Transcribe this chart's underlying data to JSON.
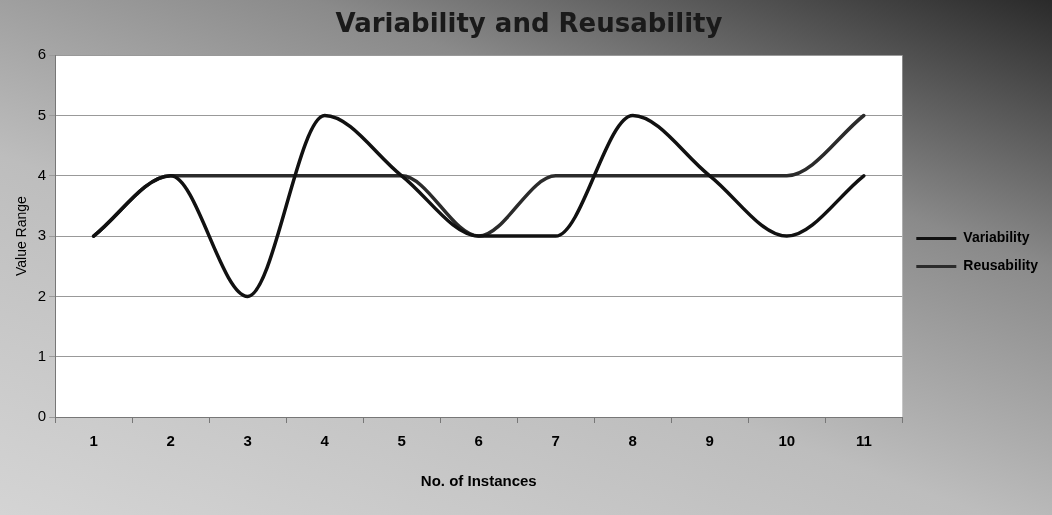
{
  "chart_data": {
    "type": "line",
    "title": "Variability and Reusability",
    "xlabel": "No. of Instances",
    "ylabel": "Value Range",
    "categories": [
      "1",
      "2",
      "3",
      "4",
      "5",
      "6",
      "7",
      "8",
      "9",
      "10",
      "11"
    ],
    "series": [
      {
        "name": "Variability",
        "color": "#111111",
        "values": [
          3,
          4,
          2,
          5,
          4,
          3,
          3,
          5,
          4,
          3,
          4
        ]
      },
      {
        "name": "Reusability",
        "color": "#2b2b2b",
        "values": [
          3,
          4,
          4,
          4,
          4,
          3,
          4,
          4,
          4,
          4,
          5
        ]
      }
    ],
    "ylim": [
      0,
      6
    ],
    "yticks": [
      0,
      1,
      2,
      3,
      4,
      5,
      6
    ],
    "grid": "y",
    "legend": "right",
    "marker": "none",
    "line_style": "solid"
  }
}
